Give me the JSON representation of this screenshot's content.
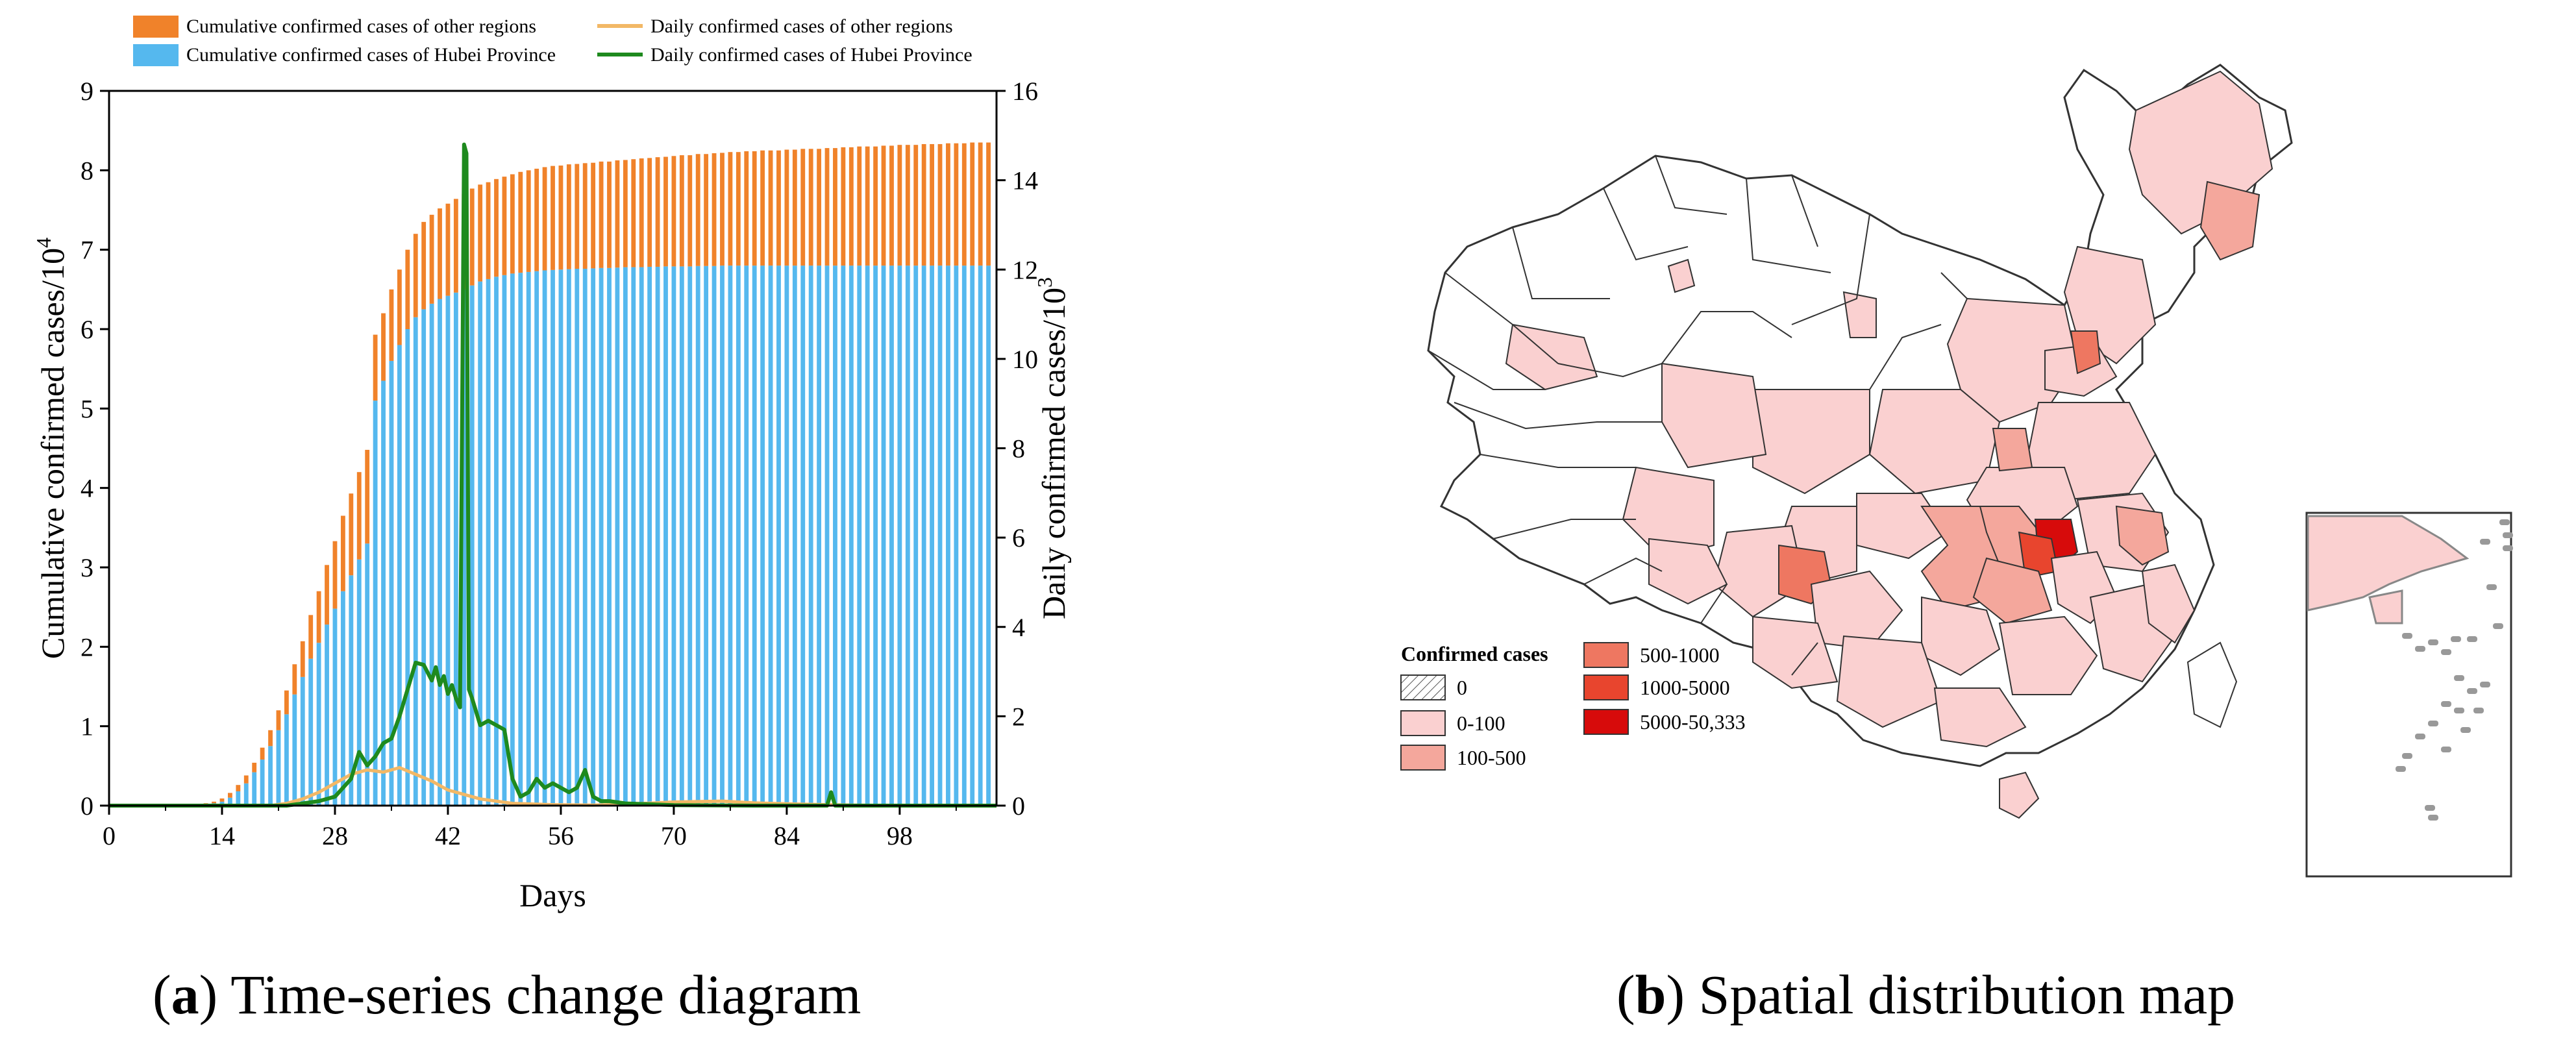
{
  "chart_data": [
    {
      "type": "bar+line",
      "title": "",
      "xlabel": "Days",
      "ylabel_left": "Cumulative confirmed cases/10^4",
      "ylabel_right": "Daily confirmed cases/10^3",
      "y_left_prefix": "Cumulative confirmed cases/10",
      "y_right_prefix": "Daily confirmed cases/10",
      "y_left_exp": "4",
      "y_right_exp": "3",
      "xlim": [
        0,
        110
      ],
      "ylim_left": [
        0,
        9
      ],
      "ylim_right": [
        0,
        16
      ],
      "x_ticks": [
        "0",
        "14",
        "28",
        "42",
        "56",
        "70",
        "84",
        "98"
      ],
      "y_left_ticks": [
        "0",
        "1",
        "2",
        "3",
        "4",
        "5",
        "6",
        "7",
        "8",
        "9"
      ],
      "y_right_ticks": [
        "0",
        "2",
        "4",
        "6",
        "8",
        "10",
        "12",
        "14",
        "16"
      ],
      "legend": {
        "position": "top",
        "entries": [
          {
            "label": "Cumulative confirmed cases of other regions",
            "kind": "bar",
            "color": "#F0822A"
          },
          {
            "label": "Daily confirmed cases of other regions",
            "kind": "line",
            "color": "#F2B866"
          },
          {
            "label": "Cumulative confirmed cases of Hubei Province",
            "kind": "bar",
            "color": "#55B8EE"
          },
          {
            "label": "Daily confirmed cases of Hubei Province",
            "kind": "line",
            "color": "#1E8A1E"
          }
        ]
      },
      "series": [
        {
          "name": "Cumulative confirmed cases of Hubei Province",
          "kind": "stacked_bar",
          "axis": "left",
          "x_start": 10,
          "values": [
            0.005,
            0.01,
            0.02,
            0.03,
            0.05,
            0.1,
            0.18,
            0.28,
            0.42,
            0.58,
            0.75,
            0.95,
            1.15,
            1.4,
            1.62,
            1.85,
            2.05,
            2.28,
            2.48,
            2.7,
            2.9,
            3.1,
            3.3,
            5.1,
            5.35,
            5.6,
            5.8,
            6.0,
            6.15,
            6.25,
            6.32,
            6.38,
            6.42,
            6.46,
            6.5,
            6.55,
            6.6,
            6.63,
            6.66,
            6.68,
            6.7,
            6.71,
            6.72,
            6.73,
            6.74,
            6.745,
            6.75,
            6.755,
            6.76,
            6.76,
            6.765,
            6.77,
            6.77,
            6.775,
            6.78,
            6.78,
            6.78,
            6.785,
            6.785,
            6.79,
            6.79,
            6.79,
            6.79,
            6.795,
            6.795,
            6.795,
            6.8,
            6.8,
            6.8,
            6.8,
            6.8,
            6.8,
            6.8,
            6.8,
            6.8,
            6.8,
            6.8,
            6.8,
            6.8,
            6.8,
            6.8,
            6.8,
            6.8,
            6.8,
            6.8,
            6.8,
            6.8,
            6.8,
            6.8,
            6.8,
            6.8,
            6.8,
            6.8,
            6.8,
            6.8,
            6.8,
            6.8,
            6.8,
            6.8,
            6.8
          ]
        },
        {
          "name": "Cumulative confirmed cases of other regions",
          "kind": "stacked_bar",
          "axis": "left",
          "x_start": 10,
          "values": [
            0.002,
            0.005,
            0.01,
            0.02,
            0.04,
            0.06,
            0.08,
            0.1,
            0.12,
            0.15,
            0.2,
            0.25,
            0.3,
            0.38,
            0.45,
            0.55,
            0.65,
            0.75,
            0.85,
            0.95,
            1.03,
            1.1,
            1.18,
            0.83,
            0.85,
            0.9,
            0.95,
            1.0,
            1.05,
            1.1,
            1.12,
            1.14,
            1.16,
            1.18,
            1.2,
            1.22,
            1.22,
            1.22,
            1.23,
            1.24,
            1.25,
            1.27,
            1.28,
            1.29,
            1.3,
            1.31,
            1.31,
            1.32,
            1.32,
            1.33,
            1.33,
            1.34,
            1.34,
            1.35,
            1.35,
            1.36,
            1.37,
            1.37,
            1.38,
            1.38,
            1.39,
            1.4,
            1.4,
            1.41,
            1.41,
            1.42,
            1.42,
            1.43,
            1.43,
            1.44,
            1.44,
            1.45,
            1.45,
            1.45,
            1.46,
            1.46,
            1.47,
            1.47,
            1.47,
            1.48,
            1.48,
            1.49,
            1.49,
            1.5,
            1.5,
            1.5,
            1.51,
            1.51,
            1.52,
            1.52,
            1.52,
            1.53,
            1.53,
            1.53,
            1.54,
            1.54,
            1.54,
            1.55,
            1.55,
            1.55
          ]
        },
        {
          "name": "Daily confirmed cases of Hubei Province",
          "kind": "line",
          "axis": "right",
          "points": [
            [
              0,
              0
            ],
            [
              22,
              0
            ],
            [
              24,
              0.05
            ],
            [
              26,
              0.1
            ],
            [
              28,
              0.2
            ],
            [
              29,
              0.4
            ],
            [
              30,
              0.6
            ],
            [
              31,
              1.2
            ],
            [
              32,
              0.9
            ],
            [
              33,
              1.1
            ],
            [
              34,
              1.4
            ],
            [
              35,
              1.5
            ],
            [
              36,
              2.0
            ],
            [
              37,
              2.6
            ],
            [
              38,
              3.2
            ],
            [
              39,
              3.15
            ],
            [
              40,
              2.8
            ],
            [
              40.5,
              3.1
            ],
            [
              41,
              2.7
            ],
            [
              41.5,
              2.9
            ],
            [
              42,
              2.5
            ],
            [
              42.5,
              2.7
            ],
            [
              43,
              2.4
            ],
            [
              43.5,
              2.2
            ],
            [
              44,
              14.8
            ],
            [
              44.3,
              14.6
            ],
            [
              44.6,
              2.6
            ],
            [
              45,
              2.4
            ],
            [
              46,
              1.8
            ],
            [
              47,
              1.9
            ],
            [
              48,
              1.8
            ],
            [
              49,
              1.7
            ],
            [
              50,
              0.6
            ],
            [
              51,
              0.2
            ],
            [
              52,
              0.3
            ],
            [
              53,
              0.6
            ],
            [
              54,
              0.4
            ],
            [
              55,
              0.5
            ],
            [
              56,
              0.4
            ],
            [
              57,
              0.3
            ],
            [
              58,
              0.4
            ],
            [
              59,
              0.8
            ],
            [
              60,
              0.2
            ],
            [
              61,
              0.1
            ],
            [
              62,
              0.1
            ],
            [
              64,
              0.05
            ],
            [
              70,
              0.01
            ],
            [
              80,
              0
            ],
            [
              89,
              0
            ],
            [
              89.5,
              0.3
            ],
            [
              90,
              0
            ],
            [
              110,
              0
            ]
          ]
        },
        {
          "name": "Daily confirmed cases of other regions",
          "kind": "line",
          "axis": "right",
          "points": [
            [
              0,
              0
            ],
            [
              20,
              0
            ],
            [
              22,
              0.05
            ],
            [
              24,
              0.15
            ],
            [
              26,
              0.3
            ],
            [
              28,
              0.5
            ],
            [
              30,
              0.7
            ],
            [
              32,
              0.8
            ],
            [
              34,
              0.75
            ],
            [
              36,
              0.85
            ],
            [
              38,
              0.7
            ],
            [
              40,
              0.55
            ],
            [
              42,
              0.35
            ],
            [
              44,
              0.25
            ],
            [
              46,
              0.15
            ],
            [
              48,
              0.1
            ],
            [
              50,
              0.05
            ],
            [
              55,
              0.02
            ],
            [
              60,
              0.01
            ],
            [
              64,
              0.03
            ],
            [
              70,
              0.08
            ],
            [
              76,
              0.1
            ],
            [
              80,
              0.06
            ],
            [
              86,
              0.03
            ],
            [
              92,
              0.01
            ],
            [
              100,
              0
            ],
            [
              110,
              0
            ]
          ]
        }
      ]
    },
    {
      "type": "choropleth",
      "title": "",
      "legend": {
        "title": "Confirmed cases",
        "entries": [
          {
            "label": "0",
            "color": "#FFFFFF",
            "hatched": true
          },
          {
            "label": "0-100",
            "color": "#FAD0D0"
          },
          {
            "label": "100-500",
            "color": "#F4A79C"
          },
          {
            "label": "500-1000",
            "color": "#EE7761"
          },
          {
            "label": "1000-5000",
            "color": "#E8452E"
          },
          {
            "label": "5000-50,333",
            "color": "#D70B0B"
          }
        ]
      }
    }
  ],
  "captions": {
    "a_letter": "a",
    "a_text": " Time-series change diagram",
    "b_letter": "b",
    "b_text": " Spatial distribution map"
  }
}
